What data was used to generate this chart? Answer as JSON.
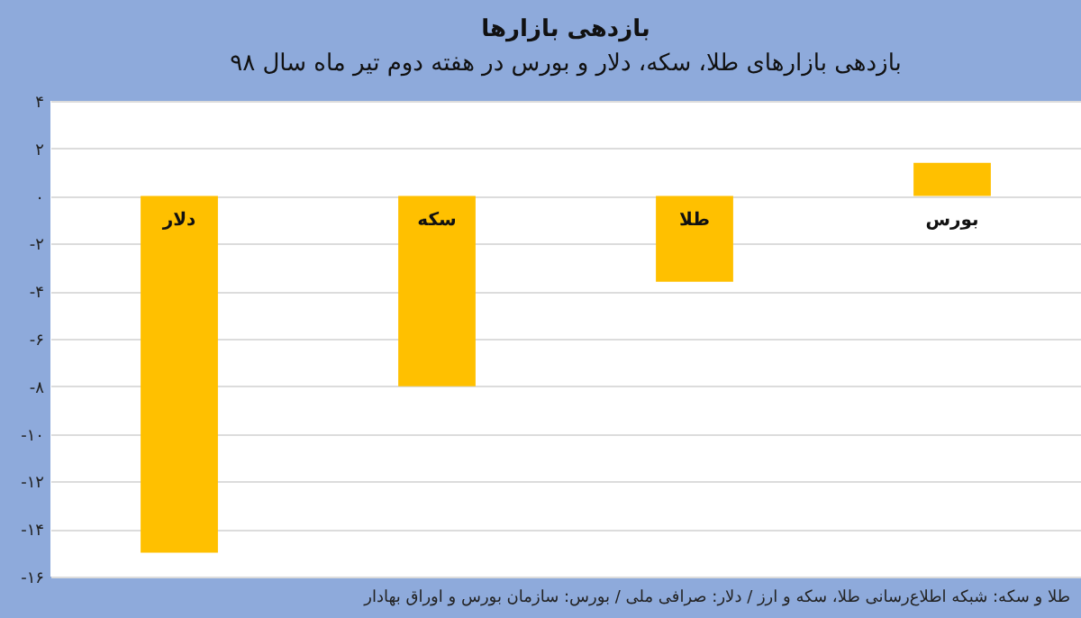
{
  "chart_data": {
    "type": "bar",
    "title": "بازدهی بازارها",
    "subtitle": "بازدهی بازارهای طلا، سکه، دلار و بورس در هفته دوم تیر ماه سال ۹۸",
    "categories": [
      "دلار",
      "سکه",
      "طلا",
      "بورس"
    ],
    "values": [
      -15.0,
      -8.0,
      -3.6,
      1.4
    ],
    "color": "#ffc000",
    "ylim": [
      -16,
      4
    ],
    "yticks": [
      {
        "value": 4,
        "label": "۴"
      },
      {
        "value": 2,
        "label": "۲"
      },
      {
        "value": 0,
        "label": "۰"
      },
      {
        "value": -2,
        "label": "-۲"
      },
      {
        "value": -4,
        "label": "-۴"
      },
      {
        "value": -6,
        "label": "-۶"
      },
      {
        "value": -8,
        "label": "-۸"
      },
      {
        "value": -10,
        "label": "-۱۰"
      },
      {
        "value": -12,
        "label": "-۱۲"
      },
      {
        "value": -14,
        "label": "-۱۴"
      },
      {
        "value": -16,
        "label": "-۱۶"
      }
    ],
    "grid": true,
    "annotations": [
      "طلا و سکه: شبکه اطلاع‌رسانی طلا، سکه و ارز / دلار: صرافی ملی / بورس: سازمان بورس و اوراق بهادار"
    ]
  }
}
